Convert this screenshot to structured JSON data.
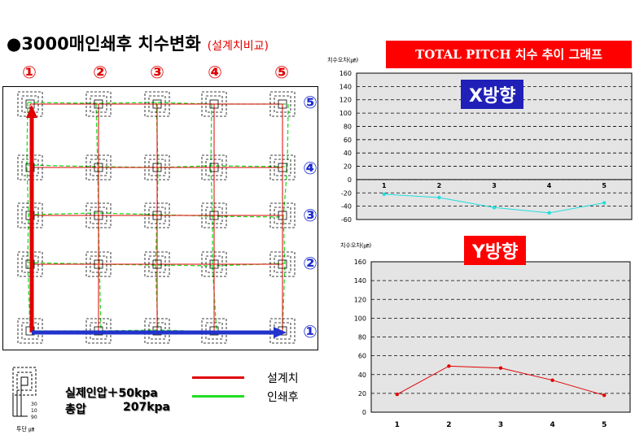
{
  "title": "●3000매인쇄후 치수변화",
  "subtitle": "(설계치비교)",
  "banner": "TOTAL PITCH 치수 추이 그래프",
  "columns": [
    "①",
    "②",
    "③",
    "④",
    "⑤"
  ],
  "rows": [
    "⑤",
    "④",
    "③",
    "②",
    "①"
  ],
  "legend": {
    "design": "설계치",
    "printed": "인쇄후"
  },
  "spec": {
    "line1": "실제인압＋50kpa",
    "line2_label": "총압",
    "line2_value": "207kpa"
  },
  "inset": {
    "labels": [
      "30",
      "10",
      "90"
    ],
    "unit": "투단 ㎛"
  },
  "colors": {
    "design": "#e00000",
    "printed": "#22dd22",
    "x_series": "#22dddd",
    "y_series": "#e00000",
    "arrow_red": "#e00000",
    "arrow_blue": "#2233cc"
  },
  "chart_data": [
    {
      "type": "line",
      "title": "X방향",
      "ylabel": "치수오차(㎛)",
      "categories": [
        "1",
        "2",
        "3",
        "4",
        "5"
      ],
      "series": [
        {
          "values": [
            -22,
            -27,
            -42,
            -50,
            -35
          ]
        }
      ],
      "ylim": [
        -60,
        160
      ],
      "yticks": [
        160,
        140,
        120,
        100,
        80,
        60,
        40,
        20,
        0,
        -20,
        -40,
        -60
      ],
      "grid": true
    },
    {
      "type": "line",
      "title": "Y방향",
      "ylabel": "치수오차(㎛)",
      "categories": [
        "1",
        "2",
        "3",
        "4",
        "5"
      ],
      "series": [
        {
          "values": [
            19,
            49,
            47,
            34,
            18
          ]
        }
      ],
      "ylim": [
        0,
        160
      ],
      "yticks": [
        160,
        140,
        120,
        100,
        80,
        60,
        40,
        20,
        0
      ],
      "grid": true
    }
  ]
}
